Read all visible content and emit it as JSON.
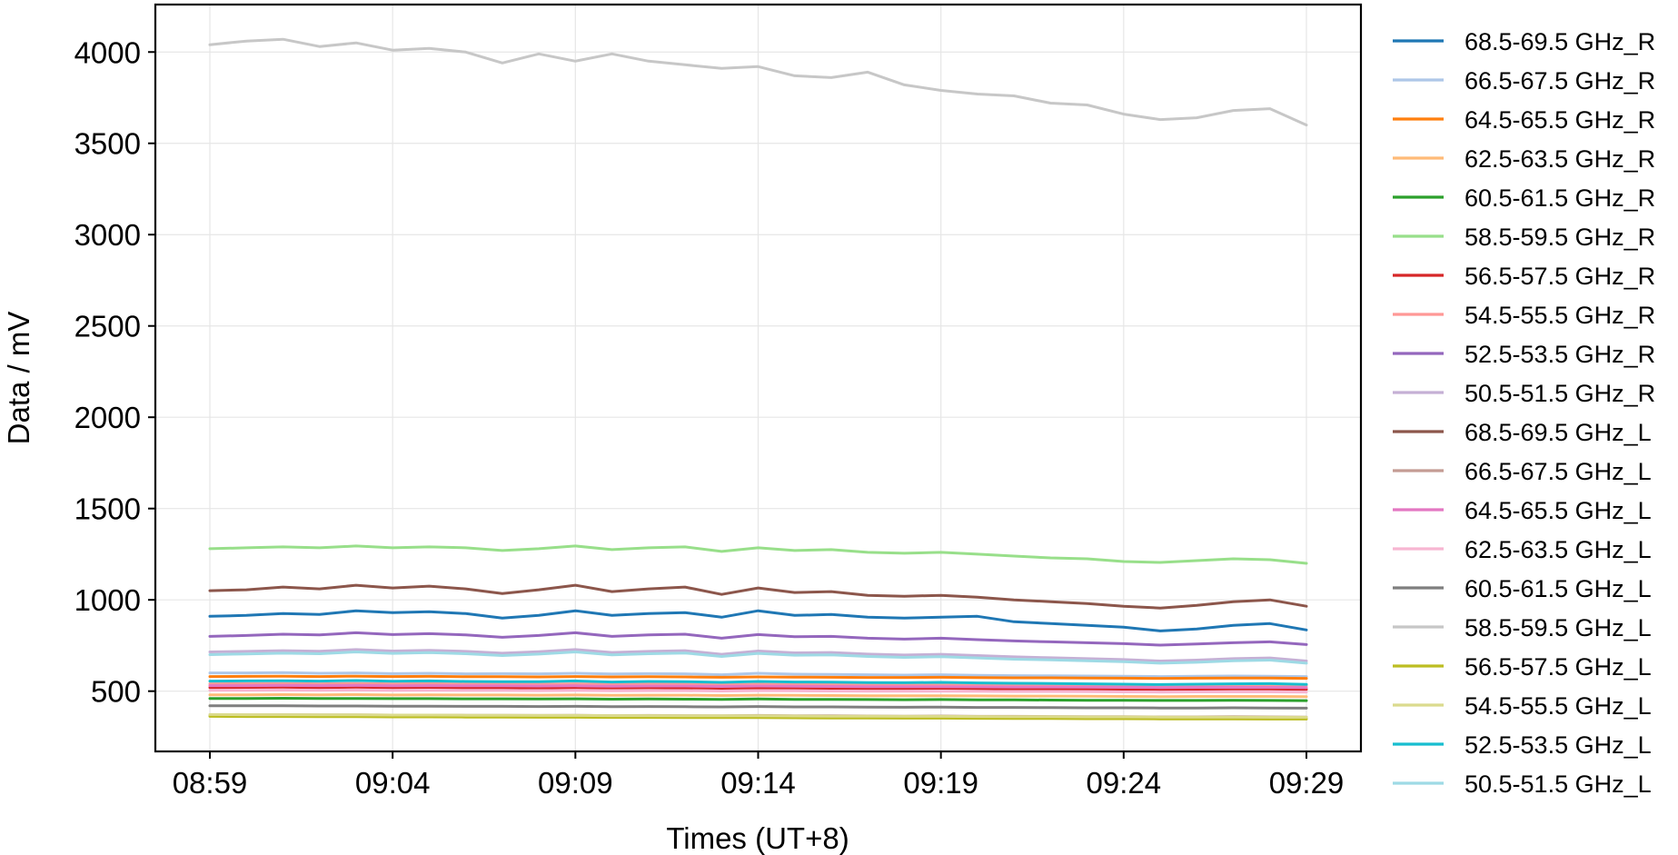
{
  "chart_data": {
    "type": "line",
    "title": "",
    "xlabel": "Times (UT+8)",
    "ylabel": "Data / mV",
    "x_unit": "minutes",
    "x": [
      "08:59",
      "09:00",
      "09:01",
      "09:02",
      "09:03",
      "09:04",
      "09:05",
      "09:06",
      "09:07",
      "09:08",
      "09:09",
      "09:10",
      "09:11",
      "09:12",
      "09:13",
      "09:14",
      "09:15",
      "09:16",
      "09:17",
      "09:18",
      "09:19",
      "09:20",
      "09:21",
      "09:22",
      "09:23",
      "09:24",
      "09:25",
      "09:26",
      "09:27",
      "09:28",
      "09:29"
    ],
    "xticks": [
      "08:59",
      "09:04",
      "09:09",
      "09:14",
      "09:19",
      "09:24",
      "09:29"
    ],
    "yticks": [
      500,
      1000,
      1500,
      2000,
      2500,
      3000,
      3500,
      4000
    ],
    "ylim": [
      170,
      4260
    ],
    "grid": true,
    "legend_position": "outside-right",
    "series": [
      {
        "name": "68.5-69.5 GHz_R",
        "color": "#1f77b4",
        "values": [
          910,
          915,
          925,
          920,
          940,
          930,
          935,
          925,
          900,
          915,
          940,
          915,
          925,
          930,
          905,
          940,
          915,
          920,
          905,
          900,
          905,
          910,
          880,
          870,
          860,
          850,
          830,
          840,
          860,
          870,
          835
        ]
      },
      {
        "name": "66.5-67.5 GHz_R",
        "color": "#aec7e8",
        "values": [
          600,
          600,
          602,
          598,
          600,
          596,
          598,
          595,
          596,
          595,
          598,
          594,
          596,
          595,
          590,
          598,
          593,
          592,
          590,
          588,
          590,
          587,
          585,
          584,
          583,
          582,
          580,
          582,
          583,
          582,
          580
        ]
      },
      {
        "name": "64.5-65.5 GHz_R",
        "color": "#ff7f0e",
        "values": [
          580,
          581,
          582,
          580,
          582,
          580,
          581,
          579,
          579,
          578,
          580,
          578,
          579,
          578,
          576,
          578,
          577,
          576,
          575,
          575,
          576,
          574,
          573,
          573,
          572,
          571,
          570,
          571,
          572,
          572,
          570
        ]
      },
      {
        "name": "62.5-63.5 GHz_R",
        "color": "#ffbb78",
        "values": [
          480,
          480,
          481,
          480,
          481,
          479,
          480,
          479,
          479,
          478,
          479,
          477,
          478,
          478,
          476,
          478,
          477,
          476,
          475,
          475,
          475,
          474,
          473,
          473,
          472,
          471,
          470,
          471,
          471,
          471,
          470
        ]
      },
      {
        "name": "60.5-61.5 GHz_R",
        "color": "#2ca02c",
        "values": [
          460,
          460,
          461,
          460,
          460,
          459,
          459,
          458,
          458,
          457,
          458,
          456,
          457,
          456,
          455,
          457,
          455,
          455,
          454,
          453,
          454,
          452,
          452,
          451,
          450,
          450,
          449,
          449,
          450,
          449,
          448
        ]
      },
      {
        "name": "58.5-59.5 GHz_R",
        "color": "#98df8a",
        "values": [
          1280,
          1285,
          1290,
          1285,
          1295,
          1285,
          1290,
          1285,
          1270,
          1280,
          1295,
          1275,
          1285,
          1290,
          1265,
          1285,
          1270,
          1275,
          1260,
          1255,
          1260,
          1250,
          1240,
          1230,
          1225,
          1210,
          1205,
          1215,
          1225,
          1220,
          1200
        ]
      },
      {
        "name": "56.5-57.5 GHz_R",
        "color": "#d62728",
        "values": [
          520,
          521,
          522,
          520,
          522,
          520,
          521,
          519,
          519,
          518,
          520,
          518,
          519,
          518,
          516,
          518,
          517,
          516,
          515,
          515,
          516,
          514,
          513,
          513,
          512,
          511,
          510,
          511,
          512,
          512,
          510
        ]
      },
      {
        "name": "54.5-55.5 GHz_R",
        "color": "#ff9896",
        "values": [
          540,
          541,
          542,
          540,
          542,
          540,
          541,
          539,
          539,
          538,
          540,
          538,
          539,
          538,
          536,
          538,
          537,
          536,
          535,
          535,
          536,
          534,
          533,
          533,
          532,
          531,
          530,
          531,
          532,
          532,
          530
        ]
      },
      {
        "name": "52.5-53.5 GHz_R",
        "color": "#9467bd",
        "values": [
          800,
          805,
          812,
          808,
          820,
          810,
          815,
          808,
          795,
          805,
          820,
          800,
          808,
          812,
          790,
          810,
          798,
          800,
          790,
          785,
          790,
          782,
          775,
          770,
          765,
          760,
          752,
          758,
          765,
          770,
          755
        ]
      },
      {
        "name": "50.5-51.5 GHz_R",
        "color": "#c5b0d5",
        "values": [
          715,
          718,
          722,
          719,
          728,
          720,
          724,
          718,
          708,
          716,
          728,
          712,
          718,
          722,
          702,
          720,
          710,
          712,
          703,
          698,
          702,
          695,
          688,
          683,
          678,
          673,
          665,
          670,
          678,
          682,
          665
        ]
      },
      {
        "name": "68.5-69.5 GHz_L",
        "color": "#8c564b",
        "values": [
          1050,
          1055,
          1070,
          1060,
          1080,
          1065,
          1075,
          1060,
          1035,
          1055,
          1080,
          1045,
          1060,
          1070,
          1030,
          1065,
          1040,
          1045,
          1025,
          1020,
          1025,
          1015,
          1000,
          990,
          980,
          965,
          955,
          970,
          990,
          1000,
          965
        ]
      },
      {
        "name": "66.5-67.5 GHz_L",
        "color": "#c49c94",
        "values": [
          370,
          370,
          371,
          370,
          370,
          369,
          369,
          368,
          368,
          367,
          368,
          366,
          367,
          366,
          365,
          367,
          365,
          365,
          364,
          363,
          364,
          362,
          362,
          361,
          360,
          360,
          359,
          359,
          360,
          359,
          358
        ]
      },
      {
        "name": "64.5-65.5 GHz_L",
        "color": "#e377c2",
        "values": [
          530,
          530,
          531,
          530,
          531,
          529,
          530,
          529,
          529,
          528,
          529,
          527,
          528,
          528,
          526,
          528,
          527,
          526,
          525,
          525,
          525,
          524,
          523,
          523,
          522,
          521,
          520,
          521,
          521,
          521,
          520
        ]
      },
      {
        "name": "62.5-63.5 GHz_L",
        "color": "#f7b6d2",
        "values": [
          505,
          505,
          506,
          505,
          506,
          504,
          505,
          504,
          504,
          503,
          504,
          502,
          503,
          503,
          501,
          503,
          502,
          501,
          500,
          500,
          500,
          499,
          498,
          498,
          497,
          496,
          495,
          496,
          496,
          496,
          495
        ]
      },
      {
        "name": "60.5-61.5 GHz_L",
        "color": "#7f7f7f",
        "values": [
          420,
          420,
          420,
          419,
          419,
          418,
          418,
          417,
          417,
          416,
          417,
          415,
          416,
          415,
          414,
          416,
          414,
          414,
          413,
          412,
          413,
          411,
          411,
          410,
          409,
          409,
          408,
          408,
          409,
          408,
          407
        ]
      },
      {
        "name": "58.5-59.5 GHz_L",
        "color": "#c7c7c7",
        "values": [
          4040,
          4060,
          4070,
          4030,
          4050,
          4010,
          4020,
          4000,
          3940,
          3990,
          3950,
          3990,
          3950,
          3930,
          3910,
          3920,
          3870,
          3860,
          3890,
          3820,
          3790,
          3770,
          3760,
          3720,
          3710,
          3660,
          3630,
          3640,
          3680,
          3690,
          3600
        ]
      },
      {
        "name": "56.5-57.5 GHz_L",
        "color": "#bcbd22",
        "values": [
          362,
          361,
          361,
          360,
          360,
          359,
          359,
          358,
          358,
          357,
          357,
          356,
          356,
          355,
          355,
          355,
          354,
          353,
          353,
          352,
          352,
          351,
          350,
          350,
          349,
          349,
          348,
          348,
          348,
          347,
          347
        ]
      },
      {
        "name": "54.5-55.5 GHz_L",
        "color": "#dbdb8d",
        "values": [
          372,
          371,
          371,
          370,
          370,
          369,
          369,
          368,
          368,
          367,
          367,
          366,
          366,
          365,
          365,
          365,
          364,
          363,
          363,
          362,
          362,
          361,
          360,
          360,
          359,
          359,
          358,
          358,
          358,
          357,
          357
        ]
      },
      {
        "name": "52.5-53.5 GHz_L",
        "color": "#17becf",
        "values": [
          555,
          556,
          557,
          555,
          558,
          554,
          556,
          553,
          552,
          552,
          556,
          550,
          553,
          552,
          548,
          553,
          550,
          549,
          547,
          546,
          548,
          545,
          543,
          542,
          540,
          538,
          536,
          538,
          540,
          541,
          537
        ]
      },
      {
        "name": "50.5-51.5 GHz_L",
        "color": "#9edae5",
        "values": [
          700,
          704,
          708,
          705,
          715,
          707,
          711,
          705,
          695,
          703,
          715,
          699,
          705,
          709,
          690,
          707,
          697,
          699,
          690,
          685,
          689,
          682,
          675,
          671,
          666,
          661,
          653,
          658,
          666,
          670,
          653
        ]
      }
    ]
  }
}
